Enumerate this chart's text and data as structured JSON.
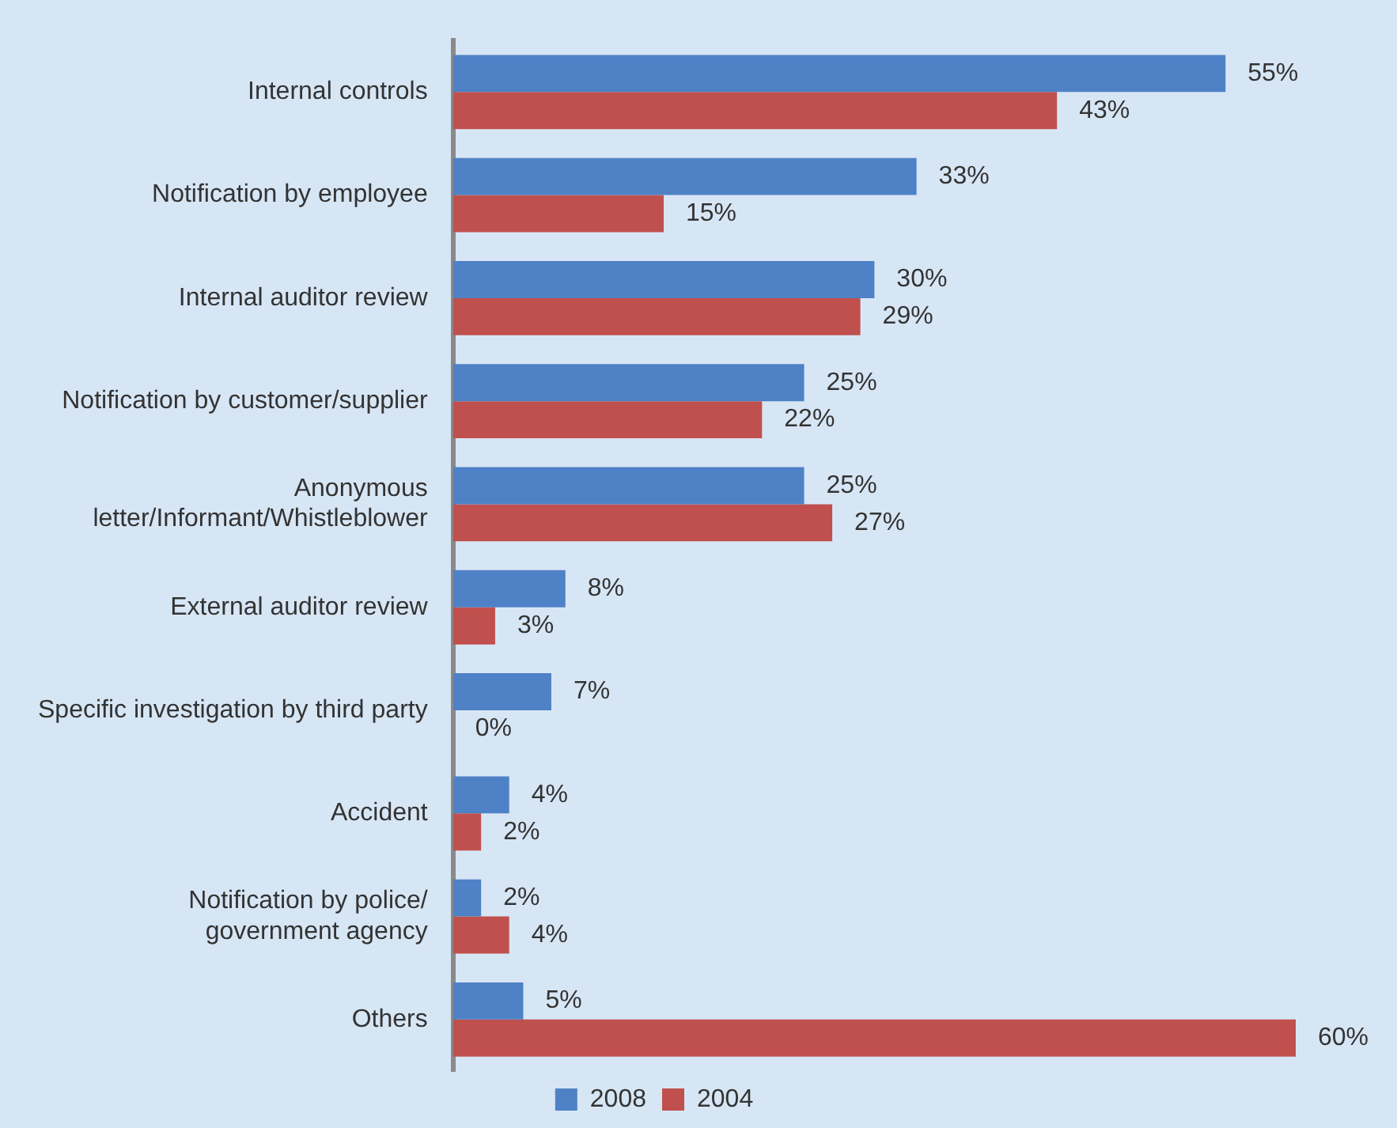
{
  "chart_data": {
    "type": "bar",
    "orientation": "horizontal",
    "categories": [
      "Internal controls",
      "Notification by employee",
      "Internal auditor review",
      "Notification by customer/supplier",
      "Anonymous\nletter/Informant/Whistleblower",
      "External auditor review",
      "Specific investigation by third party",
      "Accident",
      "Notification by police/\ngovernment agency",
      "Others"
    ],
    "series": [
      {
        "name": "2008",
        "color": "#4f81c6",
        "values": [
          55,
          33,
          30,
          25,
          25,
          8,
          7,
          4,
          2,
          5
        ],
        "value_labels": [
          "55%",
          "33%",
          "30%",
          "25%",
          "25%",
          "8%",
          "7%",
          "4%",
          "2%",
          "5%"
        ]
      },
      {
        "name": "2004",
        "color": "#c0504d",
        "values": [
          43,
          15,
          29,
          22,
          27,
          3,
          0,
          2,
          4,
          60
        ],
        "value_labels": [
          "43%",
          "15%",
          "29%",
          "22%",
          "27%",
          "3%",
          "0%",
          "2%",
          "4%",
          "60%"
        ]
      }
    ],
    "tick_labels": "y",
    "legend": "bottom",
    "grid": false
  }
}
